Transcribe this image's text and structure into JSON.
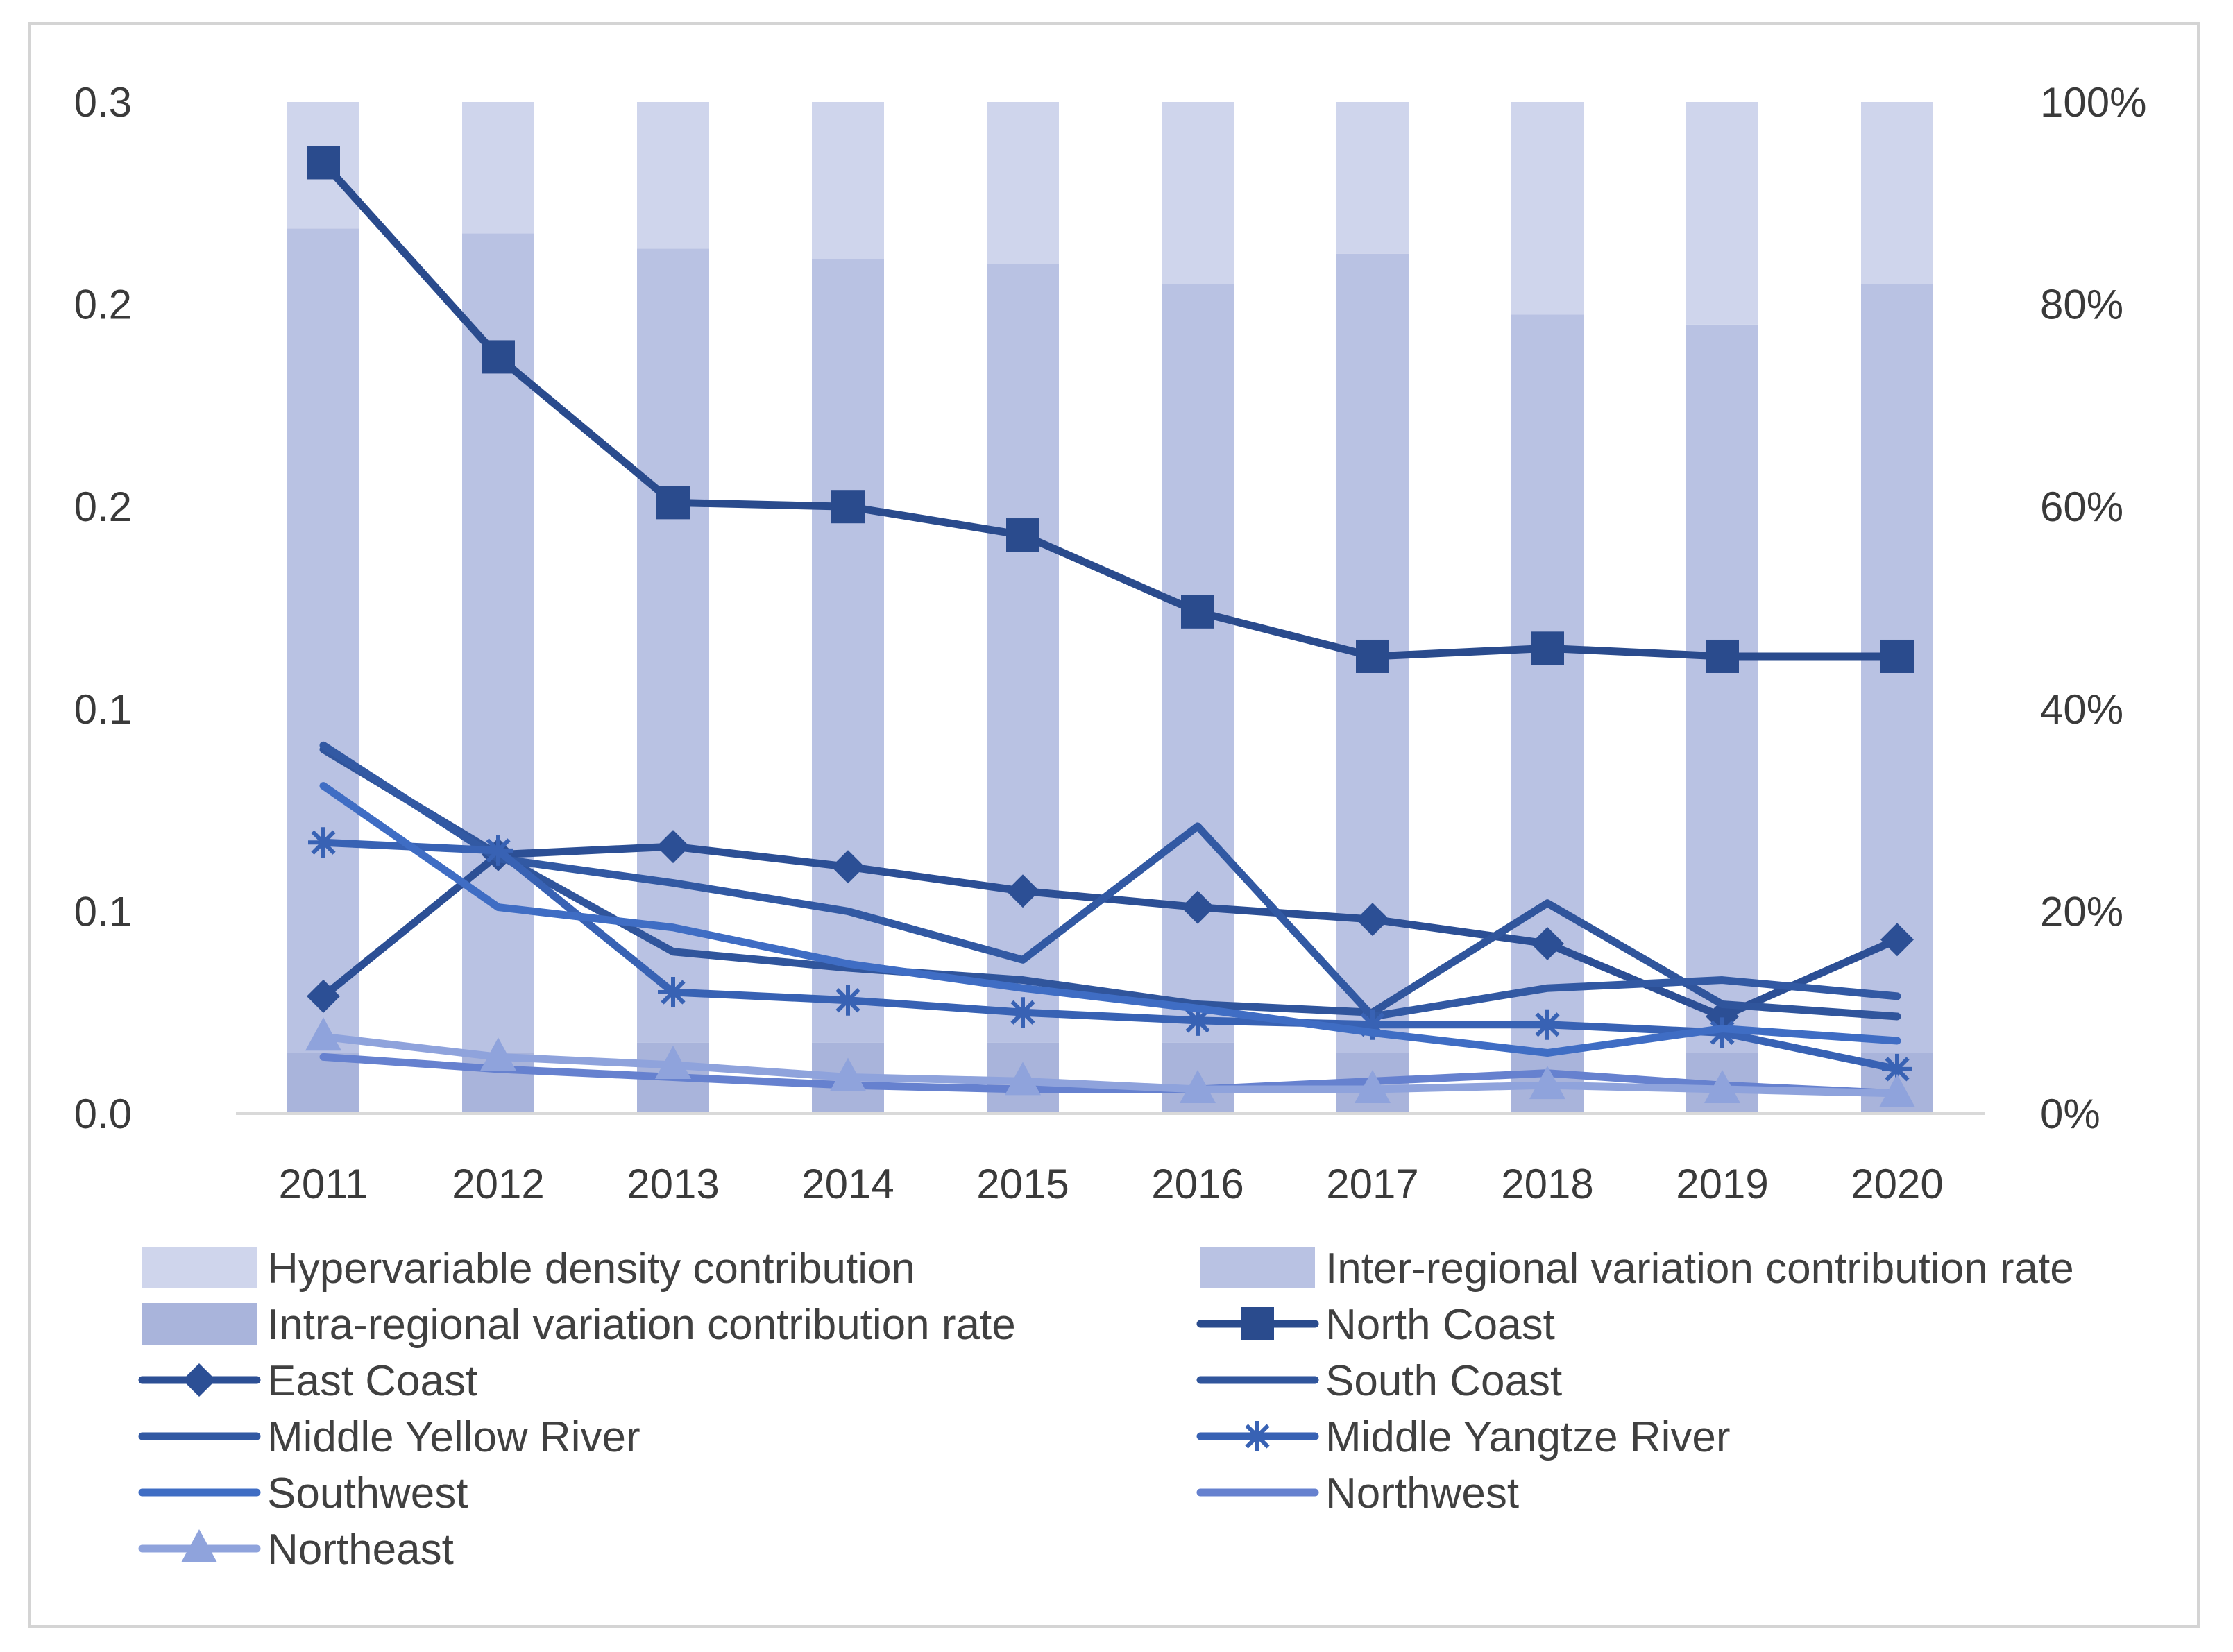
{
  "chart_data": {
    "type": "bar+line",
    "title": "",
    "categories": [
      "2011",
      "2012",
      "2013",
      "2014",
      "2015",
      "2016",
      "2017",
      "2018",
      "2019",
      "2020"
    ],
    "left_axis": {
      "ylim": [
        0,
        0.25
      ],
      "tick_labels": [
        "0.0",
        "0.1",
        "0.1",
        "0.2",
        "0.2",
        "0.3"
      ]
    },
    "right_axis": {
      "ylim": [
        0,
        100
      ],
      "tick_labels": [
        "0%",
        "20%",
        "40%",
        "60%",
        "80%",
        "100%"
      ]
    },
    "bar_series": [
      {
        "name": "Intra-regional variation contribution rate",
        "color": "#a9b4db",
        "values": [
          6,
          6,
          7,
          7,
          7,
          7,
          6,
          6,
          6,
          6
        ]
      },
      {
        "name": "Inter-regional variation contribution rate",
        "color": "#b9c2e3",
        "values": [
          81.5,
          81,
          78.5,
          77.5,
          77,
          75,
          79,
          73,
          72,
          76
        ]
      },
      {
        "name": "Hypervariable density contribution",
        "color": "#cfd5ec",
        "values": [
          12.5,
          13,
          14.5,
          15.5,
          16,
          18,
          15,
          21,
          22,
          18
        ]
      }
    ],
    "line_series": [
      {
        "name": "North Coast",
        "color": "#2a4b8d",
        "marker": "square",
        "values": [
          0.235,
          0.187,
          0.151,
          0.15,
          0.143,
          0.124,
          0.113,
          0.115,
          0.113,
          0.113
        ]
      },
      {
        "name": "East Coast",
        "color": "#2c4f95",
        "marker": "diamond",
        "values": [
          0.029,
          0.064,
          0.066,
          0.061,
          0.055,
          0.051,
          0.048,
          0.042,
          0.024,
          0.043
        ]
      },
      {
        "name": "South Coast",
        "color": "#30559c",
        "marker": "none",
        "values": [
          0.09,
          0.064,
          0.04,
          0.036,
          0.033,
          0.027,
          0.025,
          0.052,
          0.027,
          0.024
        ]
      },
      {
        "name": "Middle Yellow River",
        "color": "#3259a3",
        "marker": "none",
        "values": [
          0.091,
          0.063,
          0.057,
          0.05,
          0.038,
          0.071,
          0.024,
          0.031,
          0.033,
          0.029
        ]
      },
      {
        "name": "Middle Yangtze River",
        "color": "#3862b4",
        "marker": "asterisk",
        "values": [
          0.067,
          0.065,
          0.03,
          0.028,
          0.025,
          0.023,
          0.022,
          0.022,
          0.02,
          0.011
        ]
      },
      {
        "name": "Southwest",
        "color": "#3f6dc4",
        "marker": "none",
        "values": [
          0.081,
          0.051,
          0.046,
          0.037,
          0.031,
          0.026,
          0.02,
          0.015,
          0.021,
          0.018
        ]
      },
      {
        "name": "Northwest",
        "color": "#6681cf",
        "marker": "none",
        "values": [
          0.014,
          0.011,
          0.009,
          0.007,
          0.006,
          0.006,
          0.008,
          0.01,
          0.007,
          0.005
        ]
      },
      {
        "name": "Northeast",
        "color": "#8fa3dc",
        "marker": "triangle",
        "values": [
          0.019,
          0.014,
          0.012,
          0.009,
          0.008,
          0.006,
          0.006,
          0.007,
          0.006,
          0.005
        ]
      }
    ],
    "legend": {
      "position": "bottom",
      "items": [
        "Hypervariable density contribution",
        "Inter-regional variation contribution rate",
        "Intra-regional variation contribution rate",
        "North Coast",
        "East Coast",
        "South Coast",
        "Middle Yellow River",
        "Middle Yangtze River",
        "Southwest",
        "Northwest",
        "Northeast"
      ]
    }
  }
}
